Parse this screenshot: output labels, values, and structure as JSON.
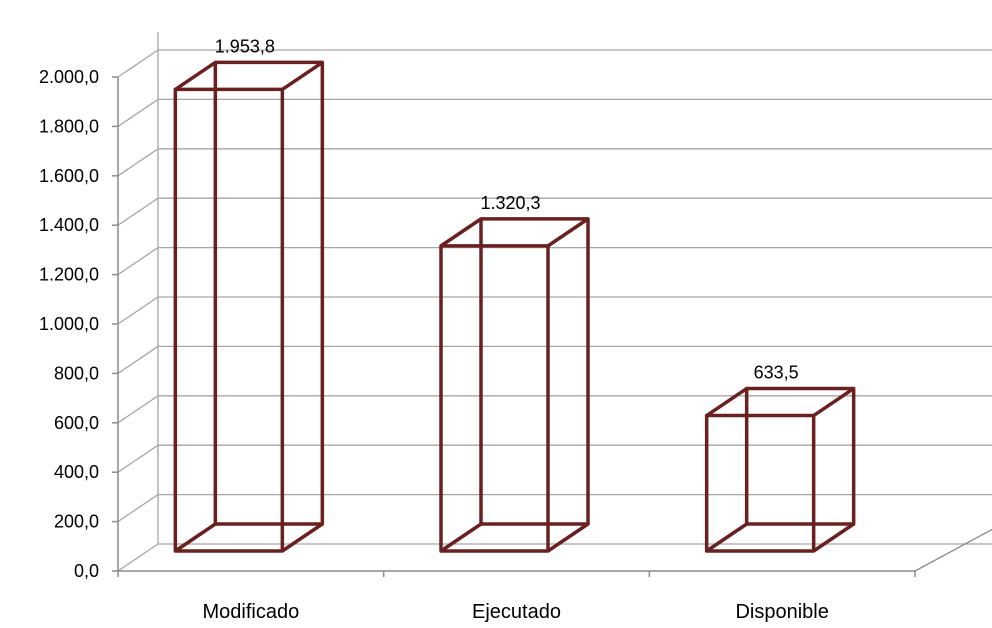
{
  "chart_data": {
    "type": "bar",
    "style": "3d-wireframe-column",
    "title": "",
    "xlabel": "",
    "ylabel": "",
    "categories": [
      "Modificado",
      "Ejecutado",
      "Disponible"
    ],
    "values": [
      1953.8,
      1320.3,
      633.5
    ],
    "data_labels": [
      "1.953,8",
      "1.320,3",
      "633,5"
    ],
    "ylim": [
      0,
      2000
    ],
    "y_ticks": [
      0,
      200,
      400,
      600,
      800,
      1000,
      1200,
      1400,
      1600,
      1800,
      2000
    ],
    "y_tick_labels": [
      "0,0",
      "200,0",
      "400,0",
      "600,0",
      "800,0",
      "1.000,0",
      "1.200,0",
      "1.400,0",
      "1.600,0",
      "1.800,0",
      "2.000,0"
    ],
    "grid": true,
    "legend": "none",
    "colors": {
      "bar_outline": "#6b2020",
      "gridline": "#a6a6a6",
      "axis": "#8c8c8c"
    }
  }
}
